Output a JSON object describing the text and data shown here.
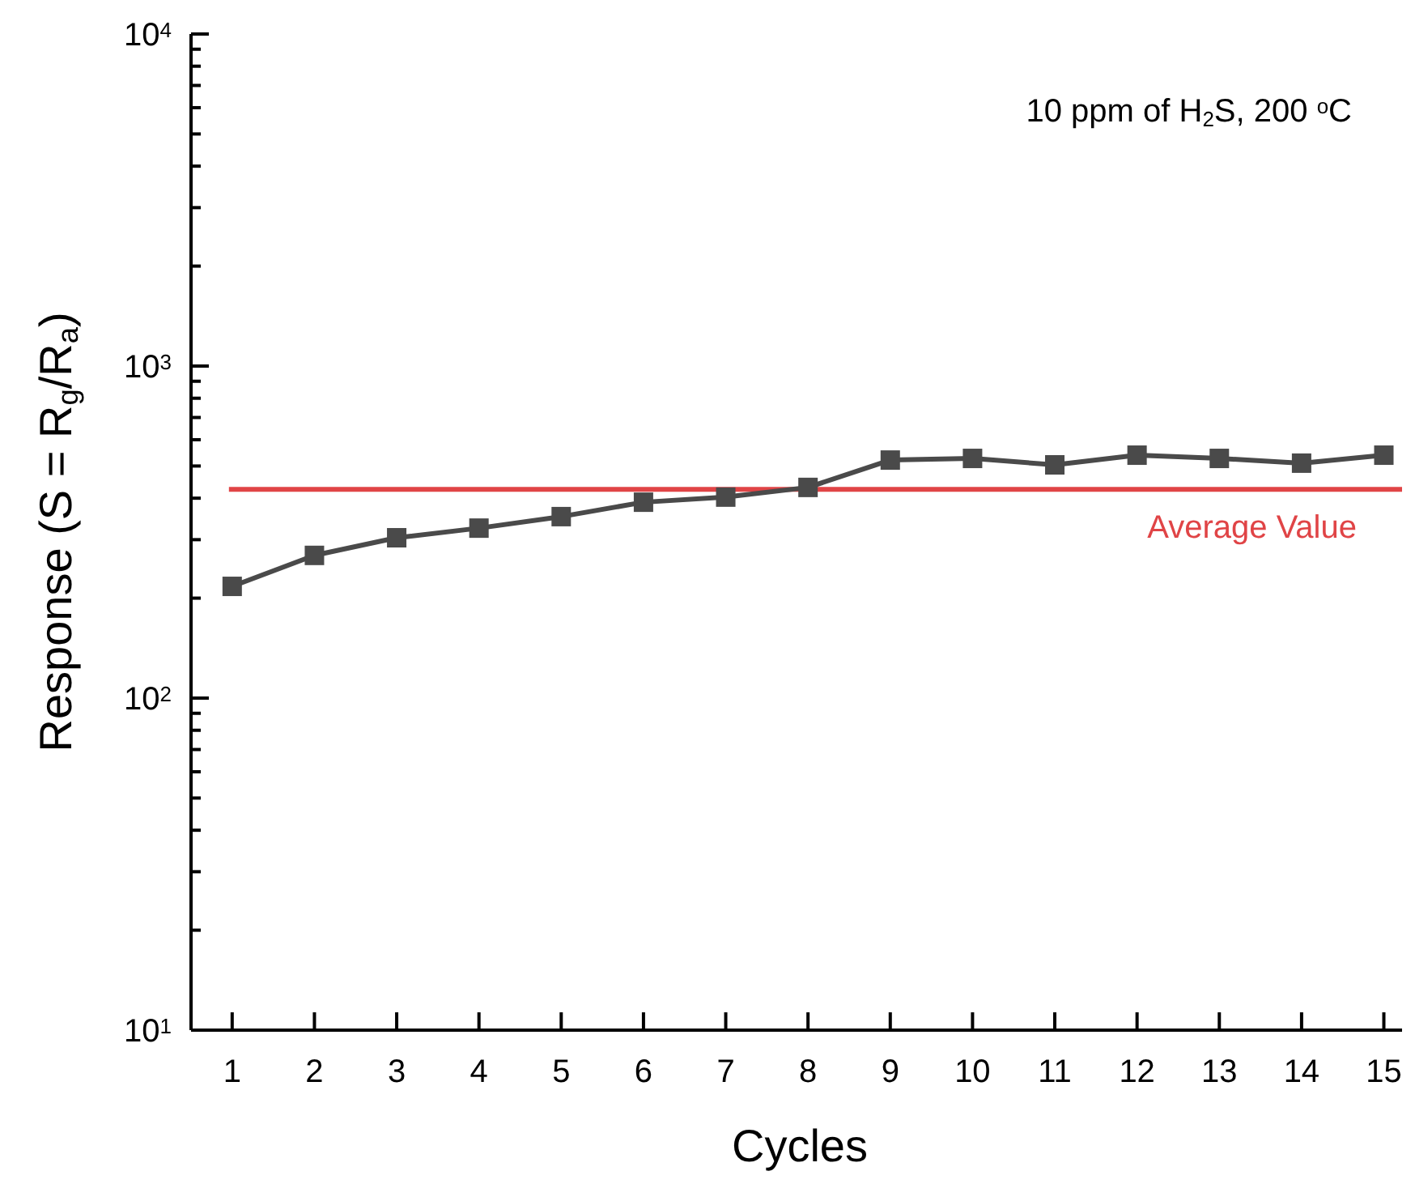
{
  "chart_data": {
    "type": "line",
    "xlabel": "Cycles",
    "ylabel": "Response (S = R$_{g}$/R$_{a}$)",
    "annotations": [
      "10 ppm of H$_{2}$S, 200 $^{o}$C"
    ],
    "x": [
      1,
      2,
      3,
      4,
      5,
      6,
      7,
      8,
      9,
      10,
      11,
      12,
      13,
      14,
      15
    ],
    "series": [
      {
        "color": "#4a4a4a",
        "values": [
          217,
          269,
          304,
          325,
          352,
          389,
          403,
          431,
          521,
          527,
          504,
          539,
          527,
          510,
          539
        ]
      }
    ],
    "xlim": [
      0.5,
      15.3
    ],
    "xticks": [
      1,
      2,
      3,
      4,
      5,
      6,
      7,
      8,
      9,
      10,
      11,
      12,
      13,
      14,
      15
    ],
    "ylim": [
      10,
      10000
    ],
    "log": true,
    "yticks": [
      {
        "value": 10,
        "label": "10$^{1}$"
      },
      {
        "value": 20,
        "label": null
      },
      {
        "value": 30,
        "label": null
      },
      {
        "value": 40,
        "label": null
      },
      {
        "value": 50,
        "label": null
      },
      {
        "value": 60,
        "label": null
      },
      {
        "value": 70,
        "label": null
      },
      {
        "value": 80,
        "label": null
      },
      {
        "value": 90,
        "label": null
      },
      {
        "value": 100,
        "label": "10$^{2}$"
      },
      {
        "value": 200,
        "label": null
      },
      {
        "value": 300,
        "label": null
      },
      {
        "value": 400,
        "label": null
      },
      {
        "value": 500,
        "label": null
      },
      {
        "value": 600,
        "label": null
      },
      {
        "value": 700,
        "label": null
      },
      {
        "value": 800,
        "label": null
      },
      {
        "value": 900,
        "label": null
      },
      {
        "value": 1000,
        "label": "10$^{3}$"
      },
      {
        "value": 2000,
        "label": null
      },
      {
        "value": 3000,
        "label": null
      },
      {
        "value": 4000,
        "label": null
      },
      {
        "value": 5000,
        "label": null
      },
      {
        "value": 6000,
        "label": null
      },
      {
        "value": 7000,
        "label": null
      },
      {
        "value": 8000,
        "label": null
      },
      {
        "value": 9000,
        "label": null
      },
      {
        "value": 10000,
        "label": "10$^{4}$"
      }
    ],
    "ref_lines": [
      {
        "axis": "y",
        "value": 425,
        "label": "Average Value",
        "color": "#e04446"
      }
    ],
    "marker": "square",
    "line_style": "solid",
    "grid": false
  }
}
